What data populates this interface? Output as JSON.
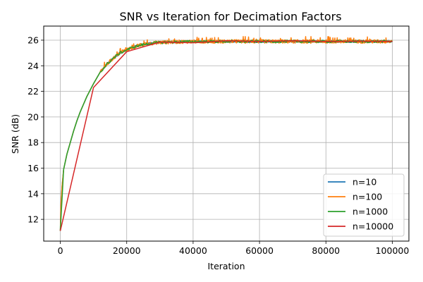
{
  "chart_data": {
    "type": "line",
    "title": "SNR vs Iteration for Decimation Factors",
    "xlabel": "Iteration",
    "ylabel": "SNR (dB)",
    "xlim": [
      -5000,
      105000
    ],
    "ylim": [
      10.3,
      27.1
    ],
    "x_ticks": [
      0,
      20000,
      40000,
      60000,
      80000,
      100000
    ],
    "y_ticks": [
      12,
      14,
      16,
      18,
      20,
      22,
      24,
      26
    ],
    "grid": true,
    "legend_position": "lower-right",
    "plateau": 25.9,
    "series": [
      {
        "name": "n=10",
        "color": "#1f77b4",
        "sampling": "every 10 iterations",
        "x": [
          0,
          200,
          500,
          1000,
          2000,
          3000,
          4000,
          5000,
          6000,
          7000,
          8000,
          9000,
          10000,
          12000,
          14000,
          16000,
          18000,
          20000,
          22000,
          24000,
          26000,
          28000,
          30000,
          35000,
          40000,
          50000,
          60000,
          70000,
          80000,
          90000,
          100000
        ],
        "y": [
          11.1,
          13.2,
          14.5,
          15.9,
          17.1,
          18.0,
          18.9,
          19.7,
          20.4,
          21.0,
          21.6,
          22.1,
          22.6,
          23.5,
          24.1,
          24.6,
          25.0,
          25.25,
          25.45,
          25.6,
          25.7,
          25.78,
          25.82,
          25.87,
          25.89,
          25.9,
          25.9,
          25.9,
          25.9,
          25.9,
          25.9
        ],
        "noise": 0.08
      },
      {
        "name": "n=100",
        "color": "#ff7f0e",
        "sampling": "every 100 iterations",
        "x": [
          0,
          200,
          500,
          1000,
          2000,
          3000,
          4000,
          5000,
          6000,
          7000,
          8000,
          9000,
          10000,
          12000,
          14000,
          16000,
          18000,
          20000,
          22000,
          24000,
          26000,
          28000,
          30000,
          35000,
          40000,
          50000,
          60000,
          70000,
          80000,
          90000,
          100000
        ],
        "y": [
          11.1,
          13.2,
          14.5,
          15.9,
          17.1,
          18.0,
          18.9,
          19.7,
          20.4,
          21.0,
          21.6,
          22.1,
          22.6,
          23.5,
          24.1,
          24.6,
          25.0,
          25.25,
          25.45,
          25.6,
          25.7,
          25.78,
          25.82,
          25.87,
          25.89,
          25.9,
          25.9,
          25.9,
          25.9,
          25.9,
          25.9
        ],
        "noise": 0.14
      },
      {
        "name": "n=1000",
        "color": "#2ca02c",
        "sampling": "every 1000 iterations",
        "x": [
          0,
          1000,
          2000,
          3000,
          4000,
          5000,
          6000,
          7000,
          8000,
          9000,
          10000,
          12000,
          14000,
          16000,
          18000,
          20000,
          22000,
          24000,
          26000,
          28000,
          30000,
          35000,
          40000,
          50000,
          60000,
          70000,
          80000,
          90000,
          100000
        ],
        "y": [
          11.1,
          15.9,
          17.1,
          18.0,
          18.9,
          19.7,
          20.4,
          21.0,
          21.6,
          22.1,
          22.6,
          23.5,
          24.1,
          24.6,
          25.0,
          25.25,
          25.45,
          25.6,
          25.7,
          25.78,
          25.82,
          25.87,
          25.89,
          25.9,
          25.9,
          25.9,
          25.9,
          25.9,
          25.9
        ],
        "noise": 0.1
      },
      {
        "name": "n=10000",
        "color": "#d62728",
        "sampling": "every 10000 iterations",
        "x": [
          0,
          10000,
          20000,
          30000,
          40000,
          50000,
          60000,
          70000,
          80000,
          90000,
          100000
        ],
        "y": [
          11.1,
          22.3,
          25.1,
          25.85,
          25.8,
          25.95,
          25.9,
          25.95,
          25.9,
          25.92,
          25.9
        ],
        "noise": 0
      }
    ]
  },
  "colors": {
    "background": "#ffffff",
    "grid": "#b0b0b0",
    "axes": "#000000"
  }
}
